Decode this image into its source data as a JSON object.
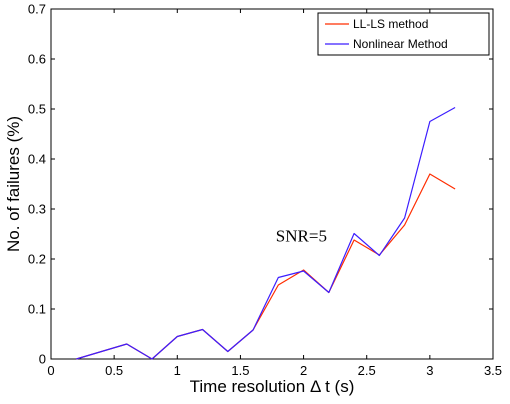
{
  "chart_data": {
    "type": "line",
    "xlabel": "Time resolution Δ t (s)",
    "ylabel": "No. of failures (%)",
    "xlim": [
      0,
      3.5
    ],
    "ylim": [
      0,
      0.7
    ],
    "xticks": [
      0,
      0.5,
      1,
      1.5,
      2,
      2.5,
      3,
      3.5
    ],
    "yticks": [
      0,
      0.1,
      0.2,
      0.3,
      0.4,
      0.5,
      0.6,
      0.7
    ],
    "xtick_labels": [
      "0",
      "0.5",
      "1",
      "1.5",
      "2",
      "2.5",
      "3",
      "3.5"
    ],
    "ytick_labels": [
      "0",
      "0.1",
      "0.2",
      "0.3",
      "0.4",
      "0.5",
      "0.6",
      "0.7"
    ],
    "grid": false,
    "legend_position": "top-right",
    "annotation": {
      "text": "SNR=5",
      "x": 1.78,
      "y": 0.235
    },
    "x": [
      0.2,
      0.4,
      0.6,
      0.8,
      1.0,
      1.2,
      1.4,
      1.6,
      1.8,
      2.0,
      2.2,
      2.4,
      2.6,
      2.8,
      3.0,
      3.2
    ],
    "series": [
      {
        "name": "LL-LS method",
        "color": "#ff2d00",
        "values": [
          0.0,
          0.015,
          0.03,
          0.0,
          0.045,
          0.059,
          0.015,
          0.058,
          0.148,
          0.178,
          0.133,
          0.238,
          0.208,
          0.268,
          0.37,
          0.34
        ]
      },
      {
        "name": "Nonlinear Method",
        "color": "#3c1eff",
        "values": [
          0.0,
          0.015,
          0.03,
          0.0,
          0.045,
          0.059,
          0.015,
          0.058,
          0.163,
          0.176,
          0.133,
          0.251,
          0.207,
          0.282,
          0.475,
          0.503
        ]
      }
    ]
  }
}
